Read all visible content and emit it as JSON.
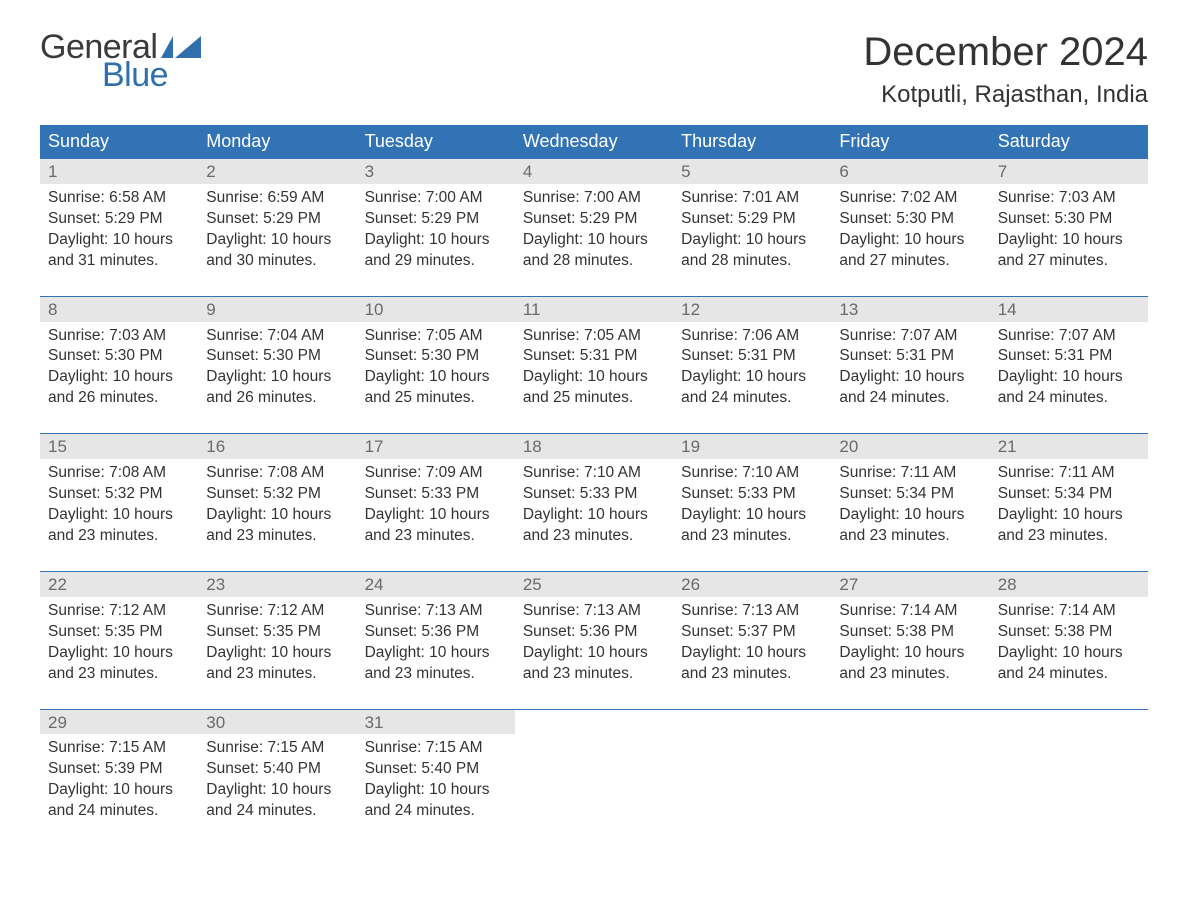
{
  "logo": {
    "text_general": "General",
    "text_blue": "Blue",
    "color_general": "#3a3a3a",
    "color_blue": "#2f6fae"
  },
  "title": "December 2024",
  "location": "Kotputli, Rajasthan, India",
  "colors": {
    "header_bg": "#3173b5",
    "header_text": "#ffffff",
    "daynum_bg": "#e6e6e6",
    "daynum_text": "#6a6a6a",
    "body_text": "#333333",
    "week_border": "#3173b5",
    "page_bg": "#ffffff"
  },
  "typography": {
    "title_fontsize": 40,
    "location_fontsize": 24,
    "dayheader_fontsize": 18,
    "cell_fontsize": 15.5,
    "logo_fontsize": 34
  },
  "day_headers": [
    "Sunday",
    "Monday",
    "Tuesday",
    "Wednesday",
    "Thursday",
    "Friday",
    "Saturday"
  ],
  "weeks": [
    [
      {
        "n": "1",
        "sunrise": "Sunrise: 6:58 AM",
        "sunset": "Sunset: 5:29 PM",
        "d1": "Daylight: 10 hours",
        "d2": "and 31 minutes."
      },
      {
        "n": "2",
        "sunrise": "Sunrise: 6:59 AM",
        "sunset": "Sunset: 5:29 PM",
        "d1": "Daylight: 10 hours",
        "d2": "and 30 minutes."
      },
      {
        "n": "3",
        "sunrise": "Sunrise: 7:00 AM",
        "sunset": "Sunset: 5:29 PM",
        "d1": "Daylight: 10 hours",
        "d2": "and 29 minutes."
      },
      {
        "n": "4",
        "sunrise": "Sunrise: 7:00 AM",
        "sunset": "Sunset: 5:29 PM",
        "d1": "Daylight: 10 hours",
        "d2": "and 28 minutes."
      },
      {
        "n": "5",
        "sunrise": "Sunrise: 7:01 AM",
        "sunset": "Sunset: 5:29 PM",
        "d1": "Daylight: 10 hours",
        "d2": "and 28 minutes."
      },
      {
        "n": "6",
        "sunrise": "Sunrise: 7:02 AM",
        "sunset": "Sunset: 5:30 PM",
        "d1": "Daylight: 10 hours",
        "d2": "and 27 minutes."
      },
      {
        "n": "7",
        "sunrise": "Sunrise: 7:03 AM",
        "sunset": "Sunset: 5:30 PM",
        "d1": "Daylight: 10 hours",
        "d2": "and 27 minutes."
      }
    ],
    [
      {
        "n": "8",
        "sunrise": "Sunrise: 7:03 AM",
        "sunset": "Sunset: 5:30 PM",
        "d1": "Daylight: 10 hours",
        "d2": "and 26 minutes."
      },
      {
        "n": "9",
        "sunrise": "Sunrise: 7:04 AM",
        "sunset": "Sunset: 5:30 PM",
        "d1": "Daylight: 10 hours",
        "d2": "and 26 minutes."
      },
      {
        "n": "10",
        "sunrise": "Sunrise: 7:05 AM",
        "sunset": "Sunset: 5:30 PM",
        "d1": "Daylight: 10 hours",
        "d2": "and 25 minutes."
      },
      {
        "n": "11",
        "sunrise": "Sunrise: 7:05 AM",
        "sunset": "Sunset: 5:31 PM",
        "d1": "Daylight: 10 hours",
        "d2": "and 25 minutes."
      },
      {
        "n": "12",
        "sunrise": "Sunrise: 7:06 AM",
        "sunset": "Sunset: 5:31 PM",
        "d1": "Daylight: 10 hours",
        "d2": "and 24 minutes."
      },
      {
        "n": "13",
        "sunrise": "Sunrise: 7:07 AM",
        "sunset": "Sunset: 5:31 PM",
        "d1": "Daylight: 10 hours",
        "d2": "and 24 minutes."
      },
      {
        "n": "14",
        "sunrise": "Sunrise: 7:07 AM",
        "sunset": "Sunset: 5:31 PM",
        "d1": "Daylight: 10 hours",
        "d2": "and 24 minutes."
      }
    ],
    [
      {
        "n": "15",
        "sunrise": "Sunrise: 7:08 AM",
        "sunset": "Sunset: 5:32 PM",
        "d1": "Daylight: 10 hours",
        "d2": "and 23 minutes."
      },
      {
        "n": "16",
        "sunrise": "Sunrise: 7:08 AM",
        "sunset": "Sunset: 5:32 PM",
        "d1": "Daylight: 10 hours",
        "d2": "and 23 minutes."
      },
      {
        "n": "17",
        "sunrise": "Sunrise: 7:09 AM",
        "sunset": "Sunset: 5:33 PM",
        "d1": "Daylight: 10 hours",
        "d2": "and 23 minutes."
      },
      {
        "n": "18",
        "sunrise": "Sunrise: 7:10 AM",
        "sunset": "Sunset: 5:33 PM",
        "d1": "Daylight: 10 hours",
        "d2": "and 23 minutes."
      },
      {
        "n": "19",
        "sunrise": "Sunrise: 7:10 AM",
        "sunset": "Sunset: 5:33 PM",
        "d1": "Daylight: 10 hours",
        "d2": "and 23 minutes."
      },
      {
        "n": "20",
        "sunrise": "Sunrise: 7:11 AM",
        "sunset": "Sunset: 5:34 PM",
        "d1": "Daylight: 10 hours",
        "d2": "and 23 minutes."
      },
      {
        "n": "21",
        "sunrise": "Sunrise: 7:11 AM",
        "sunset": "Sunset: 5:34 PM",
        "d1": "Daylight: 10 hours",
        "d2": "and 23 minutes."
      }
    ],
    [
      {
        "n": "22",
        "sunrise": "Sunrise: 7:12 AM",
        "sunset": "Sunset: 5:35 PM",
        "d1": "Daylight: 10 hours",
        "d2": "and 23 minutes."
      },
      {
        "n": "23",
        "sunrise": "Sunrise: 7:12 AM",
        "sunset": "Sunset: 5:35 PM",
        "d1": "Daylight: 10 hours",
        "d2": "and 23 minutes."
      },
      {
        "n": "24",
        "sunrise": "Sunrise: 7:13 AM",
        "sunset": "Sunset: 5:36 PM",
        "d1": "Daylight: 10 hours",
        "d2": "and 23 minutes."
      },
      {
        "n": "25",
        "sunrise": "Sunrise: 7:13 AM",
        "sunset": "Sunset: 5:36 PM",
        "d1": "Daylight: 10 hours",
        "d2": "and 23 minutes."
      },
      {
        "n": "26",
        "sunrise": "Sunrise: 7:13 AM",
        "sunset": "Sunset: 5:37 PM",
        "d1": "Daylight: 10 hours",
        "d2": "and 23 minutes."
      },
      {
        "n": "27",
        "sunrise": "Sunrise: 7:14 AM",
        "sunset": "Sunset: 5:38 PM",
        "d1": "Daylight: 10 hours",
        "d2": "and 23 minutes."
      },
      {
        "n": "28",
        "sunrise": "Sunrise: 7:14 AM",
        "sunset": "Sunset: 5:38 PM",
        "d1": "Daylight: 10 hours",
        "d2": "and 24 minutes."
      }
    ],
    [
      {
        "n": "29",
        "sunrise": "Sunrise: 7:15 AM",
        "sunset": "Sunset: 5:39 PM",
        "d1": "Daylight: 10 hours",
        "d2": "and 24 minutes."
      },
      {
        "n": "30",
        "sunrise": "Sunrise: 7:15 AM",
        "sunset": "Sunset: 5:40 PM",
        "d1": "Daylight: 10 hours",
        "d2": "and 24 minutes."
      },
      {
        "n": "31",
        "sunrise": "Sunrise: 7:15 AM",
        "sunset": "Sunset: 5:40 PM",
        "d1": "Daylight: 10 hours",
        "d2": "and 24 minutes."
      },
      null,
      null,
      null,
      null
    ]
  ]
}
